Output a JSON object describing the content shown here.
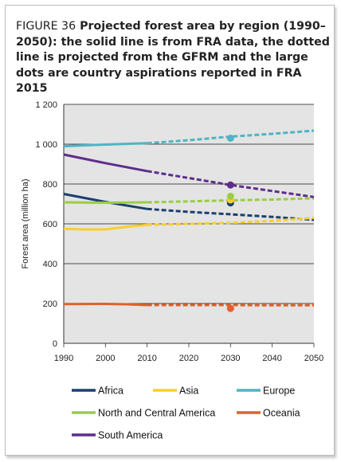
{
  "figure": {
    "label": "FIGURE 36",
    "title": "Projected forest area by region (1990–2050): the solid line is from FRA data, the dotted line is projected from the GFRM and the large dots are country aspirations reported in FRA 2015"
  },
  "chart_data": {
    "type": "line",
    "ylabel": "Forest area (million ha)",
    "xlabel": "",
    "xlim": [
      1990,
      2050
    ],
    "ylim": [
      0,
      1200
    ],
    "x_ticks": [
      "1990",
      "2000",
      "2010",
      "2020",
      "2030",
      "2040",
      "2050"
    ],
    "y_ticks": [
      "0",
      "200",
      "400",
      "600",
      "800",
      "1 000",
      "1 200"
    ],
    "y_tick_values": [
      0,
      200,
      400,
      600,
      800,
      1000,
      1200
    ],
    "x_tick_values": [
      1990,
      2000,
      2010,
      2020,
      2030,
      2040,
      2050
    ],
    "grid": "horizontal",
    "legend_position": "bottom",
    "series": [
      {
        "name": "Africa",
        "color": "#1c3f6e",
        "solid": [
          [
            1990,
            750
          ],
          [
            2000,
            710
          ],
          [
            2010,
            675
          ]
        ],
        "dotted": [
          [
            2010,
            675
          ],
          [
            2020,
            660
          ],
          [
            2030,
            648
          ],
          [
            2040,
            635
          ],
          [
            2050,
            620
          ]
        ],
        "aspiration": [
          [
            2030,
            705
          ]
        ]
      },
      {
        "name": "Asia",
        "color": "#f6cf2e",
        "solid": [
          [
            1990,
            575
          ],
          [
            1995,
            572
          ],
          [
            2000,
            572
          ],
          [
            2005,
            585
          ],
          [
            2010,
            595
          ]
        ],
        "dotted": [
          [
            2010,
            595
          ],
          [
            2020,
            600
          ],
          [
            2030,
            605
          ],
          [
            2040,
            615
          ],
          [
            2050,
            630
          ]
        ],
        "aspiration": [
          [
            2030,
            720
          ]
        ]
      },
      {
        "name": "Europe",
        "color": "#4fb4c4",
        "solid": [
          [
            1990,
            990
          ],
          [
            2000,
            998
          ],
          [
            2010,
            1005
          ]
        ],
        "dotted": [
          [
            2010,
            1005
          ],
          [
            2020,
            1020
          ],
          [
            2030,
            1038
          ],
          [
            2040,
            1052
          ],
          [
            2050,
            1068
          ]
        ],
        "aspiration": [
          [
            2030,
            1030
          ]
        ]
      },
      {
        "name": "North and Central America",
        "color": "#9acd43",
        "solid": [
          [
            1990,
            708
          ],
          [
            2000,
            706
          ],
          [
            2010,
            708
          ]
        ],
        "dotted": [
          [
            2010,
            708
          ],
          [
            2020,
            713
          ],
          [
            2030,
            718
          ],
          [
            2040,
            722
          ],
          [
            2050,
            728
          ]
        ],
        "aspiration": [
          [
            2030,
            738
          ]
        ]
      },
      {
        "name": "Oceania",
        "color": "#e0612c",
        "solid": [
          [
            1990,
            197
          ],
          [
            2000,
            198
          ],
          [
            2005,
            196
          ],
          [
            2010,
            192
          ]
        ],
        "dotted": [
          [
            2010,
            192
          ],
          [
            2020,
            192
          ],
          [
            2030,
            192
          ],
          [
            2040,
            191
          ],
          [
            2050,
            191
          ]
        ],
        "aspiration": [
          [
            2030,
            175
          ]
        ]
      },
      {
        "name": "South America",
        "color": "#5e2d8c",
        "solid": [
          [
            1990,
            948
          ],
          [
            2000,
            905
          ],
          [
            2005,
            885
          ],
          [
            2010,
            865
          ]
        ],
        "dotted": [
          [
            2010,
            865
          ],
          [
            2020,
            830
          ],
          [
            2030,
            795
          ],
          [
            2040,
            765
          ],
          [
            2050,
            735
          ]
        ],
        "aspiration": [
          [
            2030,
            795
          ]
        ]
      }
    ]
  }
}
